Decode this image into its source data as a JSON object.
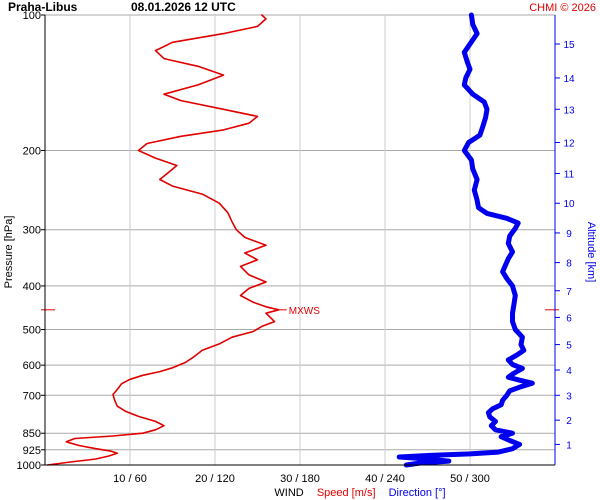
{
  "header": {
    "station": "Praha-Libus",
    "datetime": "08.01.2026 12 UTC",
    "credit": "CHMI © 2026"
  },
  "chart_data": {
    "type": "line",
    "title": "",
    "ylabel": "Pressure [hPa]",
    "y2label": "Altitude [km]",
    "xlabel": {
      "prefix": "WIND",
      "speed": "Speed [m/s]",
      "direction": "Direction [°]"
    },
    "y_scale": "log",
    "ylim": [
      1000,
      100
    ],
    "pressure_ticks": [
      "100",
      "200",
      "300",
      "400",
      "500",
      "600",
      "700",
      "850",
      "925",
      "1000"
    ],
    "pressure_tick_values": [
      100,
      200,
      300,
      400,
      500,
      600,
      700,
      850,
      925,
      1000
    ],
    "altitude_ticks": [
      "1",
      "2",
      "3",
      "4",
      "5",
      "6",
      "7",
      "8",
      "9",
      "10",
      "11",
      "12",
      "13",
      "14",
      "15"
    ],
    "altitude_tick_pressures": [
      900,
      795,
      700,
      615,
      540,
      470,
      410,
      355,
      305,
      262,
      225,
      192,
      162,
      138,
      116
    ],
    "x_ticks": [
      "10 / 60",
      "20 / 120",
      "30 / 180",
      "40 / 240",
      "50 / 300"
    ],
    "x_tick_speeds": [
      10,
      20,
      30,
      40,
      50
    ],
    "xlim_speed": [
      0,
      60
    ],
    "xlim_direction": [
      0,
      360
    ],
    "max_wind": {
      "label": "MXWS",
      "pressure": 452,
      "speed": 27.5
    },
    "colors": {
      "speed": "#e00000",
      "direction": "#0000ee",
      "grid": "#aaaaaa",
      "credit": "#e00000"
    },
    "series": [
      {
        "name": "Speed [m/s]",
        "variable": "speed",
        "points": [
          [
            1000,
            0.3
          ],
          [
            985,
            3.0
          ],
          [
            970,
            6.0
          ],
          [
            955,
            7.5
          ],
          [
            942,
            8.5
          ],
          [
            932,
            7.8
          ],
          [
            920,
            6.0
          ],
          [
            905,
            4.0
          ],
          [
            888,
            2.5
          ],
          [
            873,
            3.5
          ],
          [
            862,
            8.0
          ],
          [
            850,
            11.5
          ],
          [
            835,
            13.0
          ],
          [
            818,
            14.0
          ],
          [
            800,
            13.0
          ],
          [
            780,
            11.0
          ],
          [
            760,
            9.5
          ],
          [
            740,
            8.5
          ],
          [
            718,
            8.2
          ],
          [
            697,
            8.0
          ],
          [
            676,
            8.6
          ],
          [
            660,
            9.0
          ],
          [
            645,
            10.0
          ],
          [
            632,
            11.5
          ],
          [
            620,
            13.5
          ],
          [
            608,
            15.0
          ],
          [
            592,
            16.5
          ],
          [
            575,
            17.5
          ],
          [
            556,
            18.5
          ],
          [
            538,
            20.5
          ],
          [
            520,
            22.0
          ],
          [
            505,
            24.5
          ],
          [
            492,
            25.5
          ],
          [
            480,
            27.0
          ],
          [
            470,
            26.5
          ],
          [
            460,
            26.0
          ],
          [
            452,
            27.5
          ],
          [
            445,
            26.0
          ],
          [
            435,
            24.5
          ],
          [
            420,
            23.0
          ],
          [
            405,
            24.0
          ],
          [
            392,
            26.0
          ],
          [
            378,
            24.0
          ],
          [
            362,
            23.0
          ],
          [
            350,
            25.0
          ],
          [
            338,
            23.5
          ],
          [
            325,
            26.0
          ],
          [
            312,
            23.5
          ],
          [
            300,
            22.5
          ],
          [
            288,
            22.0
          ],
          [
            275,
            21.5
          ],
          [
            262,
            20.5
          ],
          [
            250,
            18.5
          ],
          [
            240,
            15.0
          ],
          [
            232,
            13.5
          ],
          [
            224,
            14.5
          ],
          [
            216,
            15.5
          ],
          [
            208,
            13.0
          ],
          [
            200,
            11.0
          ],
          [
            193,
            12.0
          ],
          [
            186,
            16.0
          ],
          [
            180,
            21.0
          ],
          [
            174,
            24.0
          ],
          [
            168,
            25.0
          ],
          [
            162,
            21.0
          ],
          [
            155,
            16.0
          ],
          [
            150,
            14.0
          ],
          [
            143,
            18.0
          ],
          [
            136,
            21.0
          ],
          [
            130,
            18.0
          ],
          [
            125,
            14.0
          ],
          [
            120,
            13.0
          ],
          [
            115,
            15.0
          ],
          [
            110,
            21.0
          ],
          [
            106,
            25.0
          ],
          [
            102,
            26.0
          ],
          [
            100,
            25.5
          ]
        ]
      },
      {
        "name": "Direction [°]",
        "variable": "direction",
        "points": [
          [
            1000,
            255
          ],
          [
            990,
            265
          ],
          [
            980,
            285
          ],
          [
            970,
            270
          ],
          [
            960,
            250
          ],
          [
            952,
            272
          ],
          [
            945,
            300
          ],
          [
            936,
            320
          ],
          [
            920,
            330
          ],
          [
            900,
            335
          ],
          [
            882,
            328
          ],
          [
            865,
            322
          ],
          [
            850,
            330
          ],
          [
            835,
            318
          ],
          [
            818,
            315
          ],
          [
            800,
            318
          ],
          [
            782,
            314
          ],
          [
            765,
            313
          ],
          [
            750,
            316
          ],
          [
            735,
            322
          ],
          [
            718,
            323
          ],
          [
            700,
            326
          ],
          [
            684,
            328
          ],
          [
            670,
            336
          ],
          [
            658,
            344
          ],
          [
            648,
            335
          ],
          [
            638,
            327
          ],
          [
            628,
            330
          ],
          [
            620,
            333
          ],
          [
            610,
            337
          ],
          [
            598,
            330
          ],
          [
            584,
            327
          ],
          [
            570,
            333
          ],
          [
            556,
            338
          ],
          [
            540,
            336
          ],
          [
            520,
            337
          ],
          [
            500,
            332
          ],
          [
            480,
            330
          ],
          [
            460,
            330
          ],
          [
            440,
            331
          ],
          [
            420,
            332
          ],
          [
            400,
            330
          ],
          [
            385,
            326
          ],
          [
            372,
            323
          ],
          [
            360,
            325
          ],
          [
            348,
            327
          ],
          [
            336,
            330
          ],
          [
            322,
            327
          ],
          [
            310,
            328
          ],
          [
            298,
            332
          ],
          [
            290,
            334
          ],
          [
            283,
            326
          ],
          [
            276,
            312
          ],
          [
            268,
            306
          ],
          [
            258,
            305
          ],
          [
            245,
            303
          ],
          [
            232,
            305
          ],
          [
            220,
            302
          ],
          [
            210,
            301
          ],
          [
            200,
            296
          ],
          [
            192,
            299
          ],
          [
            185,
            307
          ],
          [
            177,
            309
          ],
          [
            169,
            311
          ],
          [
            162,
            312
          ],
          [
            156,
            310
          ],
          [
            150,
            302
          ],
          [
            143,
            296
          ],
          [
            138,
            297
          ],
          [
            132,
            300
          ],
          [
            127,
            298
          ],
          [
            121,
            296
          ],
          [
            116,
            300
          ],
          [
            110,
            305
          ],
          [
            105,
            302
          ],
          [
            100,
            301
          ]
        ]
      }
    ]
  }
}
